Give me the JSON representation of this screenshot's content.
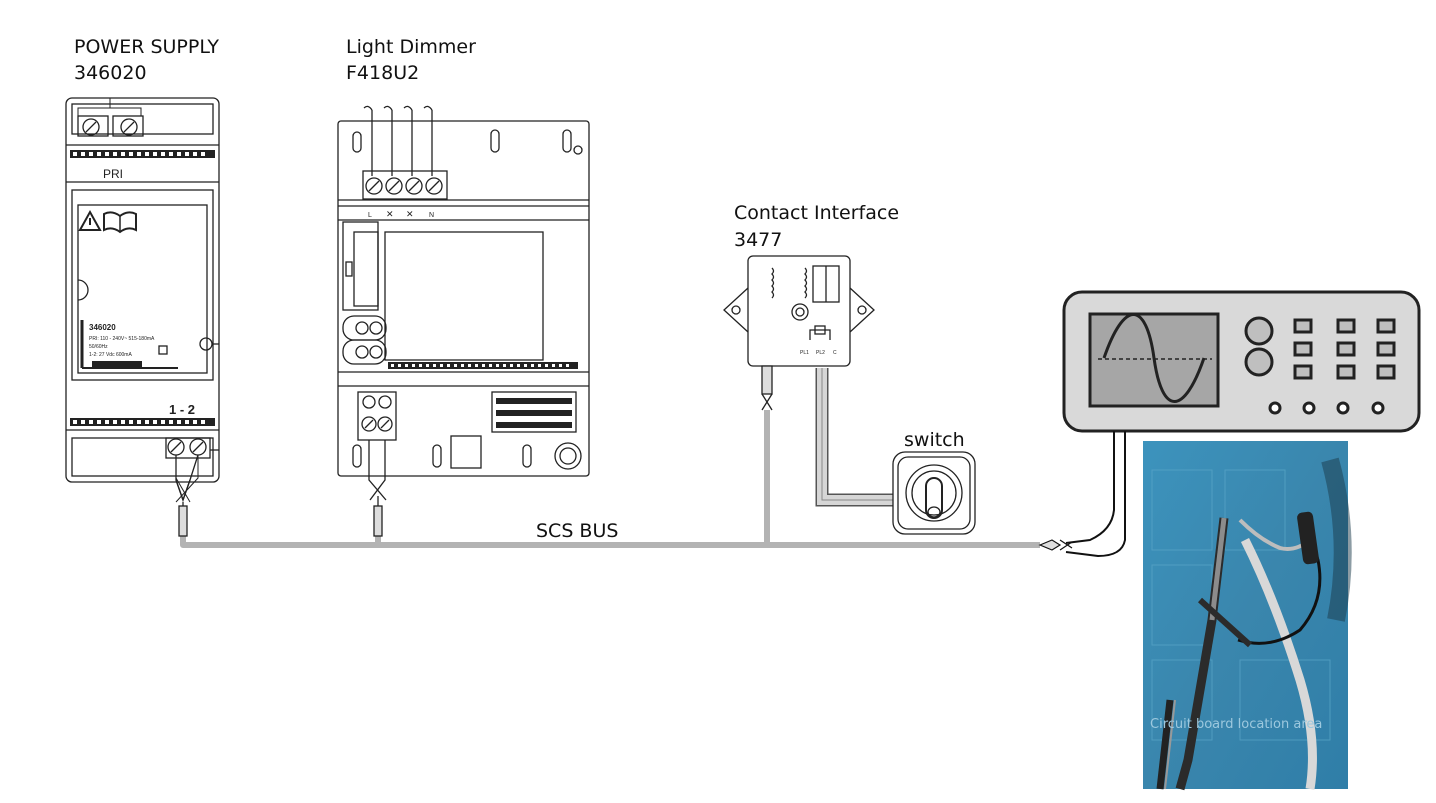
{
  "devices": {
    "power_supply": {
      "title": "POWER SUPPLY",
      "code": "346020",
      "pri_label": "PRI",
      "terminal_label": "1 - 2",
      "plate_lines": [
        "346020",
        "PRI: 110 - 240V~ 515-180mA",
        "50/60Hz",
        "1-2: 27 Vdc 600mA"
      ]
    },
    "light_dimmer": {
      "title": "Light Dimmer",
      "code": "F418U2",
      "terminal_letters": [
        "L",
        "N"
      ]
    },
    "contact_interface": {
      "title": "Contact Interface",
      "code": "3477",
      "terminal_labels": [
        "PL1",
        "PL2",
        "C"
      ]
    },
    "switch": {
      "label": "switch"
    }
  },
  "bus": {
    "label": "SCS BUS"
  },
  "photo": {
    "board_text": "Circuit board location area"
  },
  "colors": {
    "bus_wire": "#b3b3b3",
    "oscilloscope_body": "#d9d9d9",
    "oscilloscope_screen": "#a6a6a6",
    "photo_mat": "#3f8fb5"
  }
}
